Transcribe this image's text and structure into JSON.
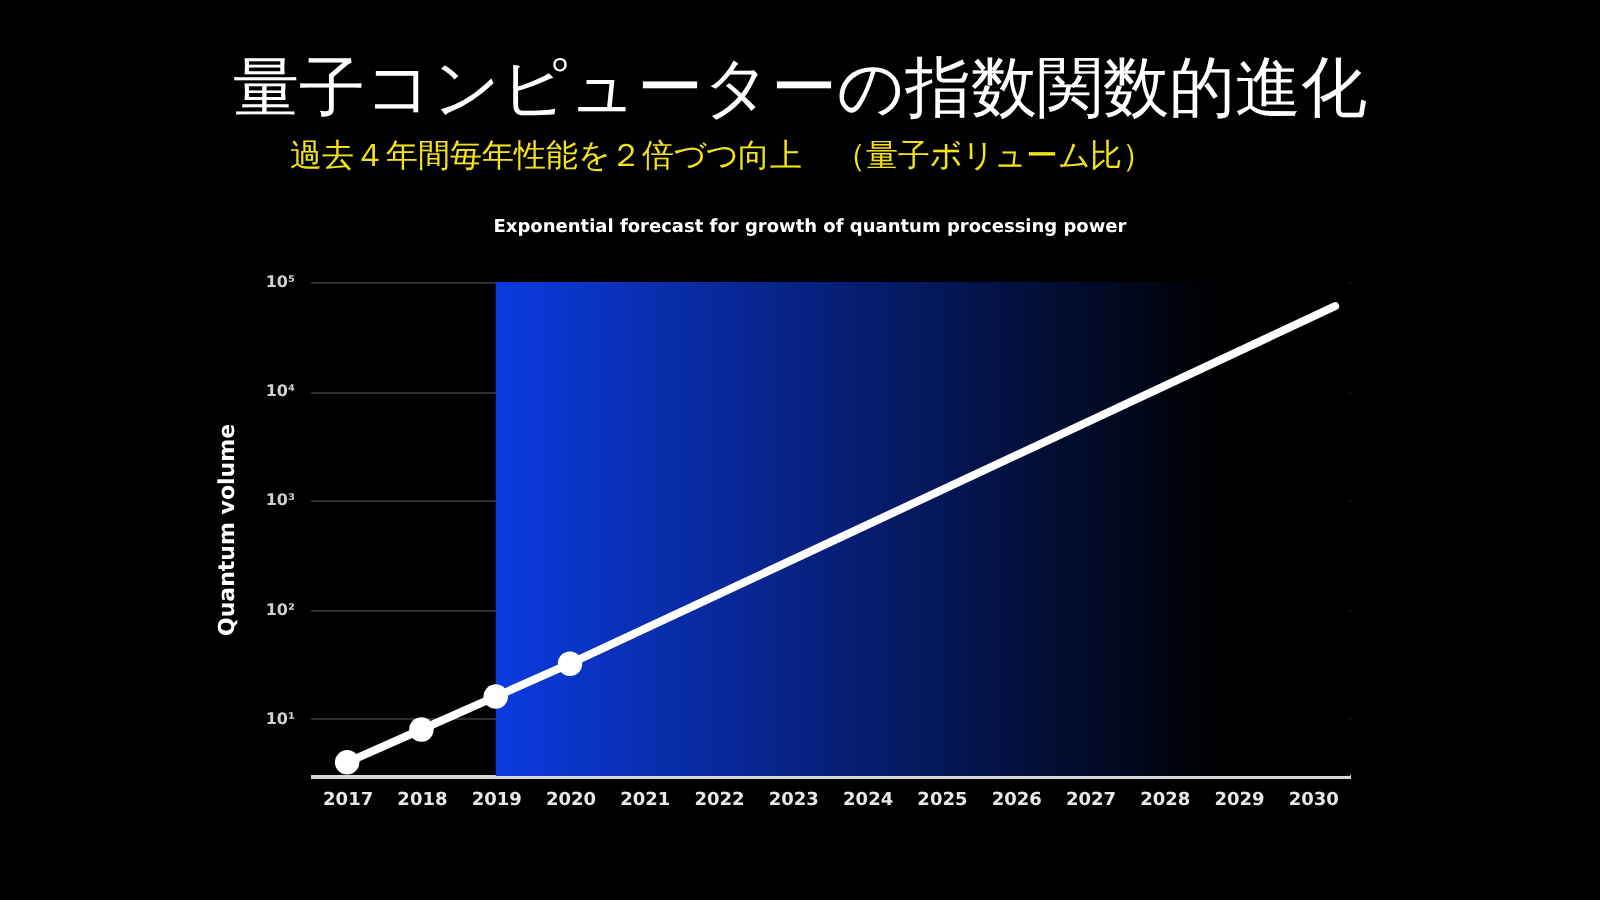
{
  "chart_data": {
    "type": "line",
    "title": "量子コンピューターの指数関数的進化",
    "subtitle": "過去４年間毎年性能を２倍づつ向上　（量子ボリューム比）",
    "annotations": [
      "Exponential forecast for growth of quantum processing power"
    ],
    "ylabel": "Quantum volume",
    "log": "y",
    "grid": "y",
    "marker": "circle",
    "line_style": "solid",
    "xlim": [
      2016.5,
      2030.5
    ],
    "xticks": [
      2017,
      2018,
      2019,
      2020,
      2021,
      2022,
      2023,
      2024,
      2025,
      2026,
      2027,
      2028,
      2029,
      2030
    ],
    "ylim": [
      3,
      100000
    ],
    "yticks": [
      {
        "value": 10,
        "label": "10¹"
      },
      {
        "value": 100,
        "label": "10²"
      },
      {
        "value": 1000,
        "label": "10³"
      },
      {
        "value": 10000,
        "label": "10⁴"
      },
      {
        "value": 100000,
        "label": "10⁵"
      }
    ],
    "bands": [
      {
        "axis": "x",
        "from": 2019,
        "to": 2030.5,
        "color": "#0b3be0"
      }
    ],
    "series": [
      {
        "color": "#ffffff",
        "x": [
          2017,
          2018,
          2019,
          2020
        ],
        "values": [
          4,
          8,
          16,
          32
        ]
      },
      {
        "color": "#ffffff",
        "x": [
          2020,
          2030.3
        ],
        "values": [
          32,
          60000
        ],
        "marker": "none"
      }
    ]
  }
}
